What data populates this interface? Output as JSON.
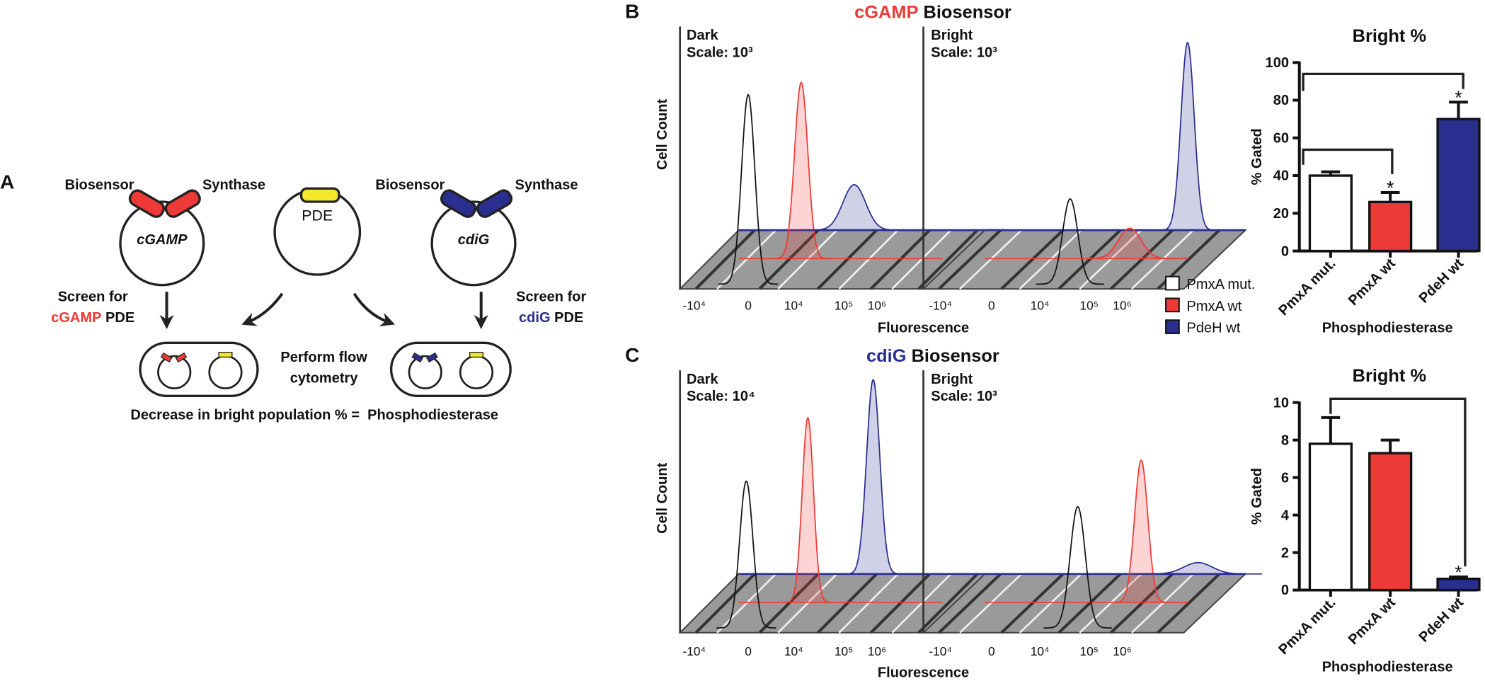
{
  "panel_a": {
    "label": "A",
    "left_plasmid": {
      "biosensor": "Biosensor",
      "synthase": "Synthase",
      "name": "cGAMP"
    },
    "pde_plasmid": "PDE",
    "right_plasmid": {
      "biosensor": "Biosensor",
      "synthase": "Synthase",
      "name": "cdiG"
    },
    "left_screen": [
      "Screen for",
      "cGAMP",
      "PDE"
    ],
    "right_screen": [
      "Screen for",
      "cdiG",
      "PDE"
    ],
    "flow": [
      "Perform flow",
      "cytometry"
    ],
    "conclusion": "Decrease in bright population % =  Phosphodiesterase"
  },
  "panel_b": {
    "label": "B",
    "title": [
      "cGAMP",
      "Biosensor"
    ],
    "dark": [
      "Dark",
      "Scale: 10³"
    ],
    "bright": [
      "Bright",
      "Scale: 10³"
    ],
    "y_label": "Cell Count",
    "x_label": "Fluorescence",
    "x_ticks": [
      "-10⁴",
      "0",
      "10⁴",
      "10⁵",
      "10⁶"
    ]
  },
  "panel_c": {
    "label": "C",
    "title": [
      "cdiG",
      "Biosensor"
    ],
    "dark": [
      "Dark",
      "Scale: 10⁴"
    ],
    "bright": [
      "Bright",
      "Scale: 10³"
    ],
    "y_label": "Cell Count",
    "x_label": "Fluorescence",
    "x_ticks": [
      "-10⁴",
      "0",
      "10⁴",
      "10⁵",
      "10⁶"
    ]
  },
  "chart_data": [
    {
      "type": "bar",
      "title": "Bright %",
      "y_label": "% Gated",
      "x_label": "Phosphodiesterase",
      "categories": [
        "PmxA mut.",
        "PmxA wt",
        "PdeH wt"
      ],
      "values": [
        40,
        26,
        70
      ],
      "errors": [
        2,
        5,
        9
      ],
      "colors": [
        "#ffffff",
        "#ee3a36",
        "#2a2e8f"
      ],
      "annotations": [
        null,
        "*",
        "*"
      ],
      "ylim": [
        0,
        100
      ],
      "yticks": [
        0,
        20,
        40,
        60,
        80,
        100
      ]
    },
    {
      "type": "bar",
      "title": "Bright %",
      "y_label": "% Gated",
      "x_label": "Phosphodiesterase",
      "categories": [
        "PmxA mut.",
        "PmxA wt",
        "PdeH wt"
      ],
      "values": [
        7.8,
        7.3,
        0.6
      ],
      "errors": [
        1.4,
        0.7,
        0.1
      ],
      "colors": [
        "#ffffff",
        "#ee3a36",
        "#2a2e8f"
      ],
      "annotations": [
        null,
        null,
        "*"
      ],
      "ylim": [
        0,
        10
      ],
      "yticks": [
        0,
        2,
        4,
        6,
        8,
        10
      ]
    }
  ]
}
